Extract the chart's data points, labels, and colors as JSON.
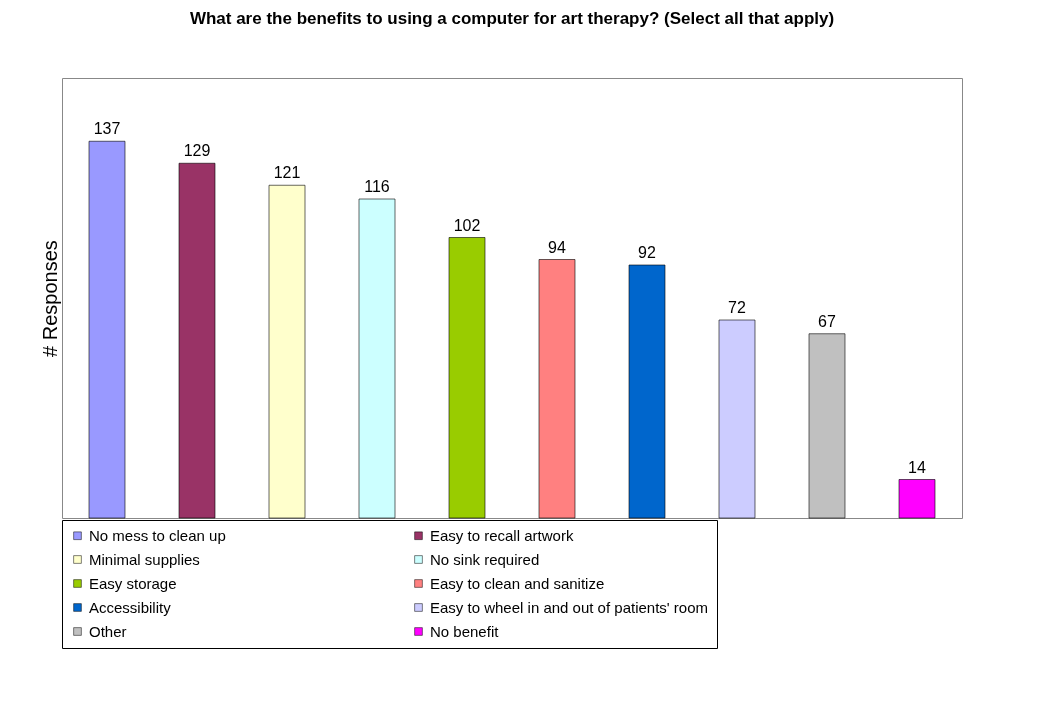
{
  "chart_data": {
    "type": "bar",
    "title": "What are the benefits to using a computer for art therapy? (Select all that apply)",
    "ylabel": "# Responses",
    "categories": [
      null,
      null,
      null,
      null,
      null,
      null,
      null,
      null,
      null,
      null
    ],
    "series": [
      {
        "name": "No mess to clean up",
        "color": "#9999ff",
        "values": [
          137,
          null,
          null,
          null,
          null,
          null,
          null,
          null,
          null,
          null
        ]
      },
      {
        "name": "Easy to recall artwork",
        "color": "#993366",
        "values": [
          null,
          129,
          null,
          null,
          null,
          null,
          null,
          null,
          null,
          null
        ]
      },
      {
        "name": "Minimal supplies",
        "color": "#ffffcc",
        "values": [
          null,
          null,
          121,
          null,
          null,
          null,
          null,
          null,
          null,
          null
        ]
      },
      {
        "name": "No sink required",
        "color": "#ccffff",
        "values": [
          null,
          null,
          null,
          116,
          null,
          null,
          null,
          null,
          null,
          null
        ]
      },
      {
        "name": "Easy storage",
        "color": "#99cc00",
        "values": [
          null,
          null,
          null,
          null,
          102,
          null,
          null,
          null,
          null,
          null
        ]
      },
      {
        "name": "Easy to clean and sanitize",
        "color": "#ff8080",
        "values": [
          null,
          null,
          null,
          null,
          null,
          94,
          null,
          null,
          null,
          null
        ]
      },
      {
        "name": "Accessibility",
        "color": "#0066cc",
        "values": [
          null,
          null,
          null,
          null,
          null,
          null,
          92,
          null,
          null,
          null
        ]
      },
      {
        "name": "Easy to wheel in and out of patients' room",
        "color": "#ccccff",
        "values": [
          null,
          null,
          null,
          null,
          null,
          null,
          null,
          72,
          null,
          null
        ]
      },
      {
        "name": "Other",
        "color": "#c0c0c0",
        "values": [
          null,
          null,
          null,
          null,
          null,
          null,
          null,
          null,
          67,
          null
        ]
      },
      {
        "name": "No benefit",
        "color": "#ff00ff",
        "values": [
          null,
          null,
          null,
          null,
          null,
          null,
          null,
          null,
          null,
          14
        ]
      }
    ],
    "ylim": [
      0,
      160
    ],
    "stacked": true,
    "data_labels": true,
    "legend": "bottom",
    "tick_labels": false
  }
}
